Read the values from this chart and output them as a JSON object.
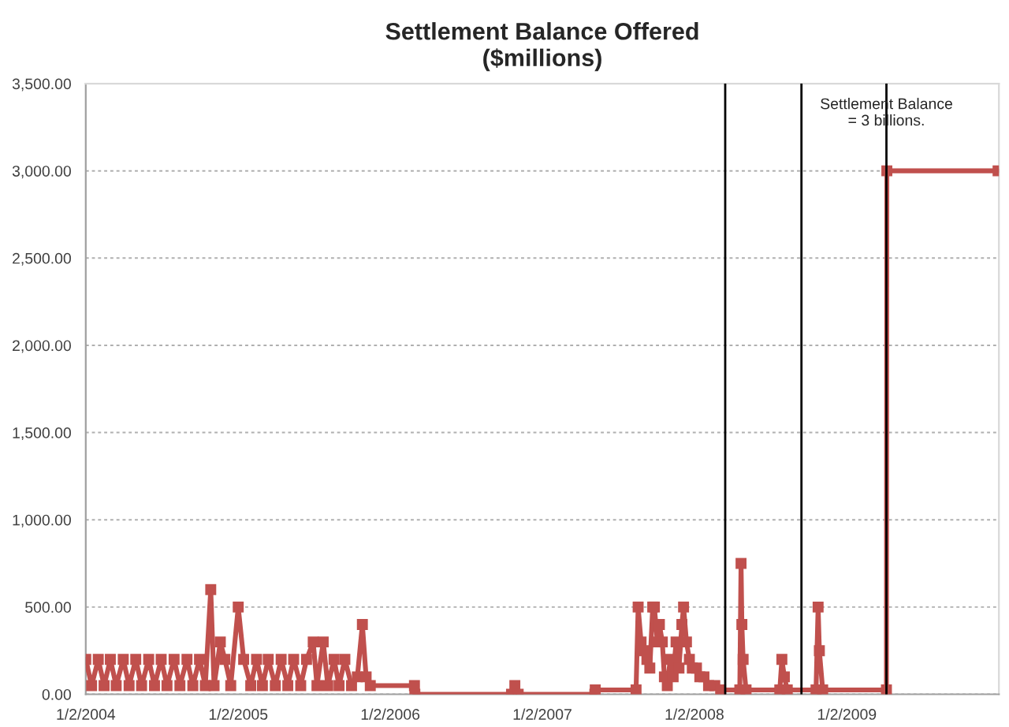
{
  "chart_data": {
    "type": "line",
    "title": "Settlement Balance Offered\n($millions)",
    "x": [
      "2004-01-02",
      "2004-01-16",
      "2004-02-01",
      "2004-02-15",
      "2004-03-01",
      "2004-03-15",
      "2004-04-01",
      "2004-04-15",
      "2004-05-01",
      "2004-05-15",
      "2004-06-01",
      "2004-06-15",
      "2004-07-01",
      "2004-07-15",
      "2004-08-01",
      "2004-08-15",
      "2004-09-01",
      "2004-09-15",
      "2004-10-01",
      "2004-10-15",
      "2004-10-28",
      "2004-11-05",
      "2004-11-20",
      "2004-12-01",
      "2004-12-15",
      "2005-01-02",
      "2005-01-15",
      "2005-02-01",
      "2005-02-15",
      "2005-03-01",
      "2005-03-15",
      "2005-04-01",
      "2005-04-15",
      "2005-05-01",
      "2005-05-15",
      "2005-06-01",
      "2005-06-15",
      "2005-07-01",
      "2005-07-10",
      "2005-07-25",
      "2005-08-05",
      "2005-08-20",
      "2005-09-01",
      "2005-09-15",
      "2005-10-01",
      "2005-10-15",
      "2005-10-27",
      "2005-11-05",
      "2005-11-15",
      "2006-03-01",
      "2006-03-02",
      "2006-10-20",
      "2006-10-28",
      "2006-11-05",
      "2007-05-08",
      "2007-05-09",
      "2007-08-15",
      "2007-08-20",
      "2007-08-27",
      "2007-09-03",
      "2007-09-10",
      "2007-09-17",
      "2007-09-24",
      "2007-09-28",
      "2007-10-05",
      "2007-10-10",
      "2007-10-17",
      "2007-10-22",
      "2007-10-29",
      "2007-11-05",
      "2007-11-12",
      "2007-11-19",
      "2007-11-26",
      "2007-12-03",
      "2007-12-07",
      "2007-12-14",
      "2007-12-21",
      "2007-12-28",
      "2008-01-07",
      "2008-01-15",
      "2008-01-25",
      "2008-02-05",
      "2008-02-20",
      "2008-03-05",
      "2008-04-20",
      "2008-04-23",
      "2008-04-25",
      "2008-04-28",
      "2008-05-05",
      "2008-07-25",
      "2008-07-30",
      "2008-08-05",
      "2008-08-12",
      "2008-10-20",
      "2008-10-25",
      "2008-10-28",
      "2008-11-05",
      "2009-04-07",
      "2009-04-08",
      "2009-12-31"
    ],
    "series": [
      {
        "color": "#c0504d",
        "values": [
          200,
          50,
          200,
          50,
          200,
          50,
          200,
          50,
          200,
          50,
          200,
          50,
          200,
          50,
          200,
          50,
          200,
          50,
          200,
          50,
          600,
          50,
          300,
          200,
          50,
          500,
          200,
          50,
          200,
          50,
          200,
          50,
          200,
          50,
          200,
          50,
          200,
          300,
          50,
          300,
          50,
          200,
          50,
          200,
          50,
          100,
          400,
          100,
          50,
          50,
          0,
          0,
          50,
          0,
          0,
          25,
          25,
          500,
          300,
          250,
          200,
          150,
          500,
          500,
          300,
          400,
          300,
          100,
          50,
          200,
          100,
          300,
          150,
          400,
          500,
          300,
          200,
          150,
          150,
          100,
          100,
          50,
          50,
          25,
          25,
          750,
          400,
          200,
          25,
          25,
          200,
          100,
          25,
          25,
          500,
          250,
          25,
          25,
          3000,
          3000
        ]
      }
    ],
    "xlim": [
      "2004-01-02",
      "2010-01-02"
    ],
    "xticks": [
      {
        "value": "2004-01-02",
        "label": "1/2/2004"
      },
      {
        "value": "2005-01-02",
        "label": "1/2/2005"
      },
      {
        "value": "2006-01-02",
        "label": "1/2/2006"
      },
      {
        "value": "2007-01-02",
        "label": "1/2/2007"
      },
      {
        "value": "2008-01-02",
        "label": "1/2/2008"
      },
      {
        "value": "2009-01-02",
        "label": "1/2/2009"
      }
    ],
    "ylim": [
      0,
      3500
    ],
    "yticks": [
      {
        "value": 0,
        "label": "0.00"
      },
      {
        "value": 500,
        "label": "500.00"
      },
      {
        "value": 1000,
        "label": "1,000.00"
      },
      {
        "value": 1500,
        "label": "1,500.00"
      },
      {
        "value": 2000,
        "label": "2,000.00"
      },
      {
        "value": 2500,
        "label": "2,500.00"
      },
      {
        "value": 3000,
        "label": "3,000.00"
      },
      {
        "value": 3500,
        "label": "3,500.00"
      }
    ],
    "grid": "y",
    "marker": "square",
    "line_style": "solid",
    "ref_lines": [
      {
        "axis": "x",
        "value": "2008-03-16",
        "color": "#000000"
      },
      {
        "axis": "x",
        "value": "2008-09-15",
        "color": "#000000"
      },
      {
        "axis": "x",
        "value": "2009-04-07",
        "color": "#000000"
      }
    ],
    "annotations": [
      {
        "text": "Settlement Balance\n= 3 billions.",
        "x": "2009-04-07",
        "y": 3330
      }
    ]
  }
}
